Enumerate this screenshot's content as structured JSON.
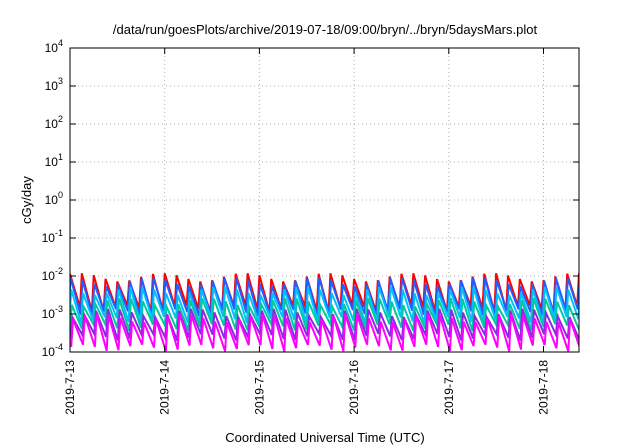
{
  "chart_data": {
    "type": "line",
    "title": "/data/run/goesPlots/archive/2019-07-18/09:00/bryn/../bryn/5daysMars.plot",
    "xlabel": "Coordinated Universal Time (UTC)",
    "ylabel": "cGy/day",
    "y_scale": "log",
    "ylim": [
      0.0001,
      10000
    ],
    "y_ticks": [
      {
        "base": "10",
        "exp": "-4",
        "value": 0.0001
      },
      {
        "base": "10",
        "exp": "-3",
        "value": 0.001
      },
      {
        "base": "10",
        "exp": "-2",
        "value": 0.01
      },
      {
        "base": "10",
        "exp": "-1",
        "value": 0.1
      },
      {
        "base": "10",
        "exp": "0",
        "value": 1
      },
      {
        "base": "10",
        "exp": "1",
        "value": 10
      },
      {
        "base": "10",
        "exp": "2",
        "value": 100
      },
      {
        "base": "10",
        "exp": "3",
        "value": 1000
      },
      {
        "base": "10",
        "exp": "4",
        "value": 10000
      }
    ],
    "x_ticks": [
      "2019-7-13",
      "2019-7-14",
      "2019-7-15",
      "2019-7-16",
      "2019-7-17",
      "2019-7-18"
    ],
    "xlim": [
      "2019-07-13T00:00",
      "2019-07-18T09:00"
    ],
    "grid": true,
    "series": [
      {
        "color": "#ff0000",
        "min": 0.0014,
        "max": 0.0095,
        "period_hours": 3
      },
      {
        "color": "#1f5fff",
        "min": 0.0011,
        "max": 0.0072,
        "period_hours": 3
      },
      {
        "color": "#00c0ff",
        "min": 0.0007,
        "max": 0.0042,
        "period_hours": 3
      },
      {
        "color": "#00c8a0",
        "min": 0.00045,
        "max": 0.0021,
        "period_hours": 3
      },
      {
        "color": "#8a2be2",
        "min": 0.00025,
        "max": 0.0011,
        "period_hours": 3
      },
      {
        "color": "#ff00ff",
        "min": 0.00013,
        "max": 0.0008,
        "period_hours": 3
      }
    ]
  }
}
